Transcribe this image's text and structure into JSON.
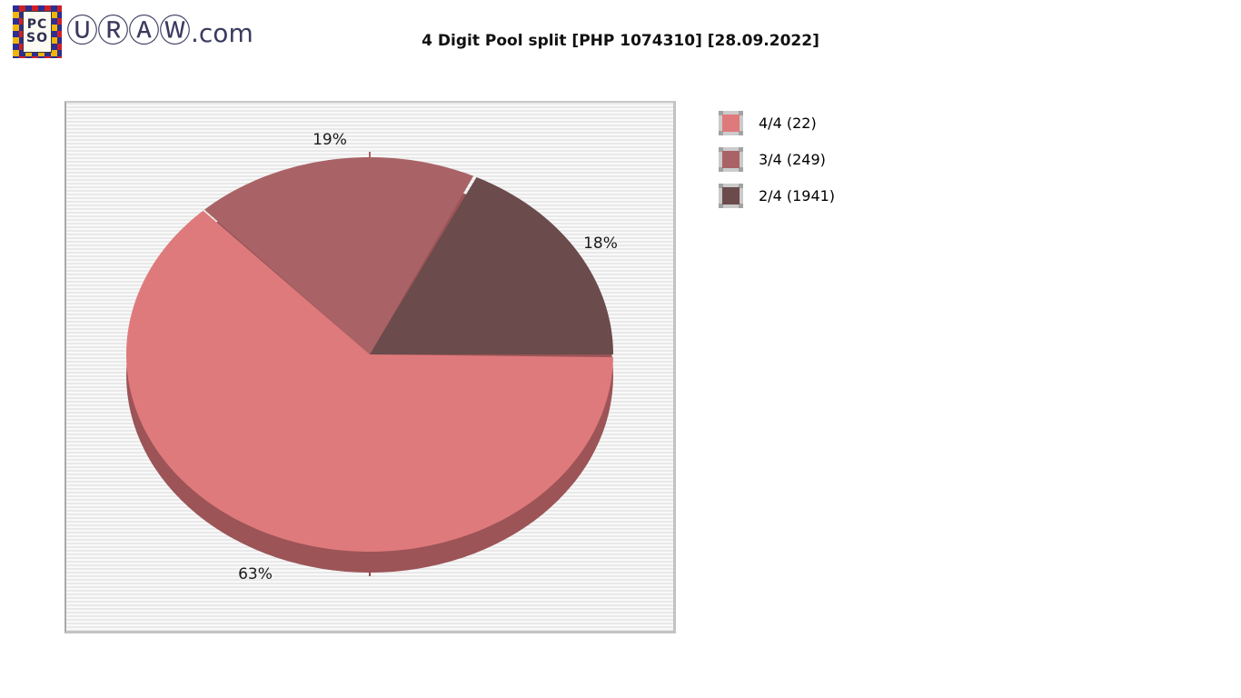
{
  "header": {
    "logo": {
      "badge_top": "PC",
      "badge_bottom": "SO",
      "wordmark_circled": "ⓊⓇⒶⓌ",
      "wordmark_suffix": ".com"
    },
    "title": "4 Digit Pool split [PHP 1074310] [28.09.2022]"
  },
  "chart_data": {
    "type": "pie",
    "title": "4 Digit Pool split [PHP 1074310] [28.09.2022]",
    "pool_amount": "PHP 1074310",
    "draw_date": "28.09.2022",
    "effect": "3d",
    "legend_position": "right",
    "start_angle_deg": 0,
    "winding": "counterclockwise from east, slices drawn in reverse legend order",
    "slices": [
      {
        "category": "4/4",
        "count": 22,
        "label": "4/4 (22)",
        "percent": 63,
        "color": "#df7a7c"
      },
      {
        "category": "3/4",
        "count": 249,
        "label": "3/4 (249)",
        "percent": 19,
        "color": "#a96366"
      },
      {
        "category": "2/4",
        "count": 1941,
        "label": "2/4 (1941)",
        "percent": 18,
        "color": "#6b4b4c"
      }
    ],
    "depth_color": "#9c5457",
    "background_stripe_colors": [
      "#e9e9e9",
      "#f9f9f9"
    ]
  }
}
